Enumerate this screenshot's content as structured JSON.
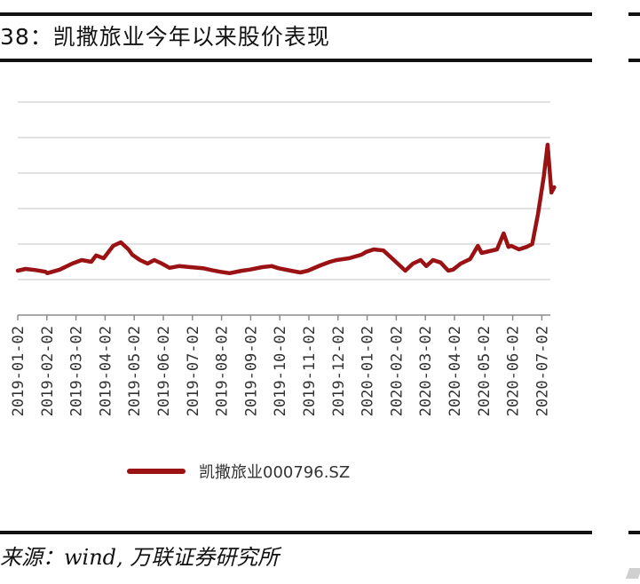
{
  "figure": {
    "title": "38：凯撒旅业今年以来股价表现",
    "source": "来源：wind, 万联证券研究所"
  },
  "colors": {
    "series": "#9b1214",
    "grid": "#d9d9d9",
    "axis": "#8c8c8c"
  },
  "chart_data": {
    "type": "line",
    "categories": [
      "2019-01-02",
      "2019-02-02",
      "2019-03-02",
      "2019-04-02",
      "2019-05-02",
      "2019-06-02",
      "2019-07-02",
      "2019-08-02",
      "2019-09-02",
      "2019-10-02",
      "2019-11-02",
      "2019-12-02",
      "2020-01-02",
      "2020-02-02",
      "2020-03-02",
      "2020-04-02",
      "2020-05-02",
      "2020-06-02",
      "2020-07-02"
    ],
    "ylim": [
      0,
      6
    ],
    "grid": true,
    "legend_position": "bottom",
    "series": [
      {
        "name": "凯撒旅业000796.SZ",
        "points": [
          [
            "2019-01-02",
            1.25
          ],
          [
            "2019-01-10",
            1.3
          ],
          [
            "2019-01-20",
            1.27
          ],
          [
            "2019-01-31",
            1.22
          ],
          [
            "2019-02-02",
            1.18
          ],
          [
            "2019-02-15",
            1.28
          ],
          [
            "2019-02-28",
            1.45
          ],
          [
            "2019-03-10",
            1.55
          ],
          [
            "2019-03-20",
            1.5
          ],
          [
            "2019-03-25",
            1.68
          ],
          [
            "2019-04-02",
            1.6
          ],
          [
            "2019-04-12",
            1.95
          ],
          [
            "2019-04-20",
            2.05
          ],
          [
            "2019-04-28",
            1.85
          ],
          [
            "2019-05-02",
            1.7
          ],
          [
            "2019-05-10",
            1.55
          ],
          [
            "2019-05-18",
            1.45
          ],
          [
            "2019-05-25",
            1.55
          ],
          [
            "2019-06-02",
            1.45
          ],
          [
            "2019-06-10",
            1.33
          ],
          [
            "2019-06-20",
            1.38
          ],
          [
            "2019-07-02",
            1.35
          ],
          [
            "2019-07-15",
            1.32
          ],
          [
            "2019-07-25",
            1.26
          ],
          [
            "2019-08-02",
            1.22
          ],
          [
            "2019-08-12",
            1.18
          ],
          [
            "2019-08-25",
            1.25
          ],
          [
            "2019-09-02",
            1.28
          ],
          [
            "2019-09-15",
            1.35
          ],
          [
            "2019-09-25",
            1.38
          ],
          [
            "2019-10-02",
            1.32
          ],
          [
            "2019-10-15",
            1.25
          ],
          [
            "2019-10-25",
            1.2
          ],
          [
            "2019-11-02",
            1.25
          ],
          [
            "2019-11-15",
            1.4
          ],
          [
            "2019-11-25",
            1.5
          ],
          [
            "2019-12-02",
            1.55
          ],
          [
            "2019-12-15",
            1.6
          ],
          [
            "2019-12-28",
            1.7
          ],
          [
            "2020-01-02",
            1.78
          ],
          [
            "2020-01-10",
            1.85
          ],
          [
            "2020-01-20",
            1.82
          ],
          [
            "2020-02-02",
            1.5
          ],
          [
            "2020-02-08",
            1.35
          ],
          [
            "2020-02-12",
            1.25
          ],
          [
            "2020-02-20",
            1.45
          ],
          [
            "2020-02-28",
            1.55
          ],
          [
            "2020-03-05",
            1.38
          ],
          [
            "2020-03-12",
            1.55
          ],
          [
            "2020-03-20",
            1.48
          ],
          [
            "2020-03-28",
            1.25
          ],
          [
            "2020-04-02",
            1.28
          ],
          [
            "2020-04-10",
            1.45
          ],
          [
            "2020-04-20",
            1.58
          ],
          [
            "2020-04-28",
            1.95
          ],
          [
            "2020-05-02",
            1.75
          ],
          [
            "2020-05-10",
            1.8
          ],
          [
            "2020-05-18",
            1.85
          ],
          [
            "2020-05-25",
            2.3
          ],
          [
            "2020-05-30",
            1.92
          ],
          [
            "2020-06-02",
            1.95
          ],
          [
            "2020-06-10",
            1.85
          ],
          [
            "2020-06-18",
            1.92
          ],
          [
            "2020-06-24",
            2.0
          ],
          [
            "2020-06-30",
            2.85
          ],
          [
            "2020-07-06",
            3.9
          ],
          [
            "2020-07-10",
            4.8
          ],
          [
            "2020-07-14",
            3.45
          ],
          [
            "2020-07-17",
            3.6
          ]
        ]
      }
    ]
  }
}
